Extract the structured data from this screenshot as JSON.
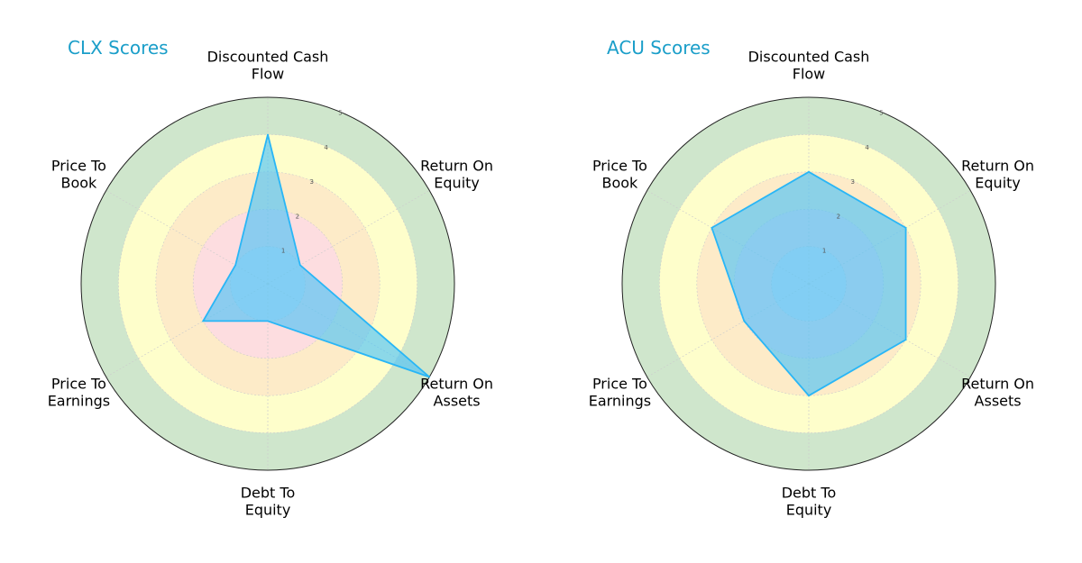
{
  "chart_data": [
    {
      "type": "radar",
      "title": "CLX Scores",
      "axes": [
        [
          "Discounted Cash",
          "Flow"
        ],
        [
          "Return On",
          "Equity"
        ],
        [
          "Return On",
          "Assets"
        ],
        [
          "Debt To",
          "Equity"
        ],
        [
          "Price To",
          "Earnings"
        ],
        [
          "Price To",
          "Book"
        ]
      ],
      "values": [
        4,
        1,
        5,
        1,
        2,
        1
      ],
      "rlim": [
        0,
        5
      ],
      "ticks": [
        "1",
        "2",
        "3",
        "4",
        "5"
      ],
      "grid": true
    },
    {
      "type": "radar",
      "title": "ACU Scores",
      "axes": [
        [
          "Discounted Cash",
          "Flow"
        ],
        [
          "Return On",
          "Equity"
        ],
        [
          "Return On",
          "Assets"
        ],
        [
          "Debt To",
          "Equity"
        ],
        [
          "Price To",
          "Earnings"
        ],
        [
          "Price To",
          "Book"
        ]
      ],
      "values": [
        3,
        3,
        3,
        3,
        2,
        3
      ],
      "rlim": [
        0,
        5
      ],
      "ticks": [
        "1",
        "2",
        "3",
        "4",
        "5"
      ],
      "grid": true
    }
  ],
  "colors": {
    "title": "#1a9ec9",
    "series_fill": "#4fc3f7",
    "series_stroke": "#29b6f6",
    "band_outer": "#cfe6cc",
    "band_yellow": "#fefecb",
    "band_orange": "#fdebc8",
    "band_red": "#fddde0",
    "band_inner": "#e3e3ee"
  }
}
